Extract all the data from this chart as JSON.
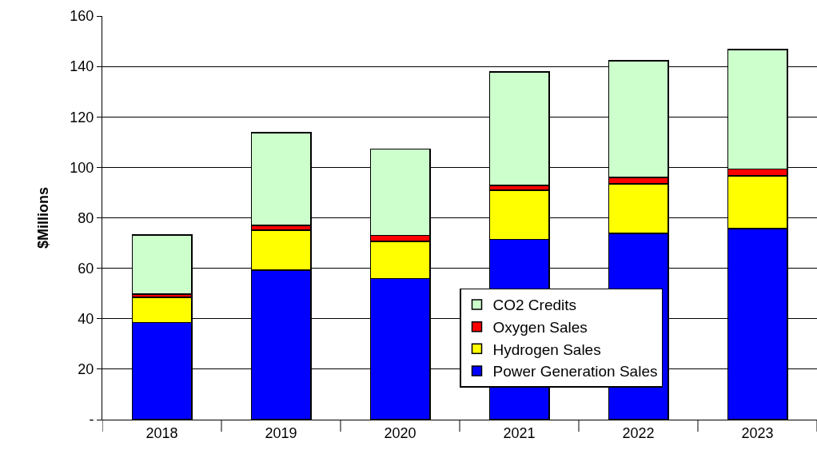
{
  "chart_data": {
    "type": "bar",
    "stacked": true,
    "ylabel": "$Millions",
    "categories": [
      "2018",
      "2019",
      "2020",
      "2021",
      "2022",
      "2023"
    ],
    "series": [
      {
        "name": "Power Generation Sales",
        "color": "#0000ff",
        "values": [
          38.5,
          59.3,
          56,
          71.5,
          73.8,
          75.7
        ]
      },
      {
        "name": "Hydrogen Sales",
        "color": "#ffff00",
        "values": [
          10,
          15.8,
          14.6,
          19.5,
          19.7,
          21
        ]
      },
      {
        "name": "Oxygen Sales",
        "color": "#ff0000",
        "values": [
          1.3,
          1.9,
          2.5,
          1.8,
          2.5,
          2.6
        ]
      },
      {
        "name": "CO2 Credits",
        "color": "#ccffcc",
        "values": [
          23.4,
          36.8,
          34.2,
          45,
          46.3,
          47.4
        ]
      }
    ],
    "ylim": [
      0,
      160
    ],
    "yticks": [
      {
        "value": 0,
        "label": "-"
      },
      20,
      40,
      60,
      80,
      100,
      120,
      140,
      160
    ],
    "grid": "y",
    "legend": "bottom right"
  }
}
